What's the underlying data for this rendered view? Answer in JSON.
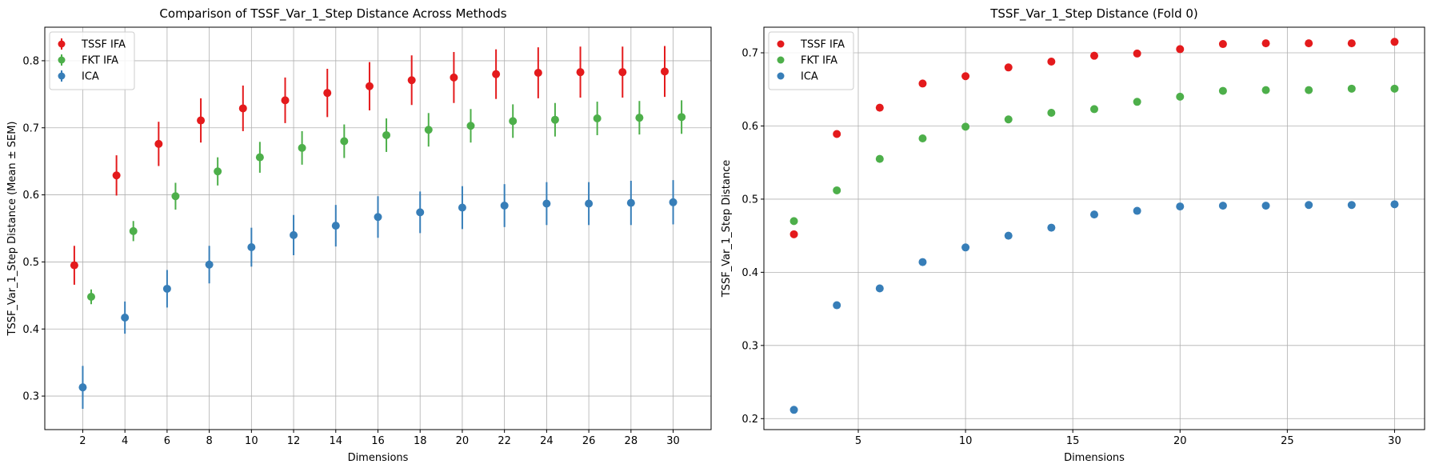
{
  "chart_data": [
    {
      "type": "scatter",
      "subtype": "errorbar",
      "title": "Comparison of TSSF_Var_1_Step Distance Across Methods",
      "xlabel": "Dimensions",
      "ylabel": "TSSF_Var_1_Step Distance (Mean ± SEM)",
      "xlim": [
        0.2,
        31.8
      ],
      "ylim": [
        0.25,
        0.85
      ],
      "xticks": [
        2,
        4,
        6,
        8,
        10,
        12,
        14,
        16,
        18,
        20,
        22,
        24,
        26,
        28,
        30
      ],
      "xtick_labels": [
        "2",
        "4",
        "6",
        "8",
        "10",
        "12",
        "14",
        "16",
        "18",
        "20",
        "22",
        "24",
        "26",
        "28",
        "30"
      ],
      "yticks": [
        0.3,
        0.4,
        0.5,
        0.6,
        0.7,
        0.8
      ],
      "ytick_labels": [
        "0.3",
        "0.4",
        "0.5",
        "0.6",
        "0.7",
        "0.8"
      ],
      "grid": true,
      "legend_position": "top-left",
      "x": [
        2,
        4,
        6,
        8,
        10,
        12,
        14,
        16,
        18,
        20,
        22,
        24,
        26,
        28,
        30
      ],
      "series": [
        {
          "name": "TSSF IFA",
          "color": "#e41a1c",
          "x_offset": -0.4,
          "values": [
            0.495,
            0.629,
            0.676,
            0.711,
            0.729,
            0.741,
            0.752,
            0.762,
            0.771,
            0.775,
            0.78,
            0.782,
            0.783,
            0.783,
            0.784
          ],
          "errors": [
            0.029,
            0.03,
            0.033,
            0.033,
            0.034,
            0.034,
            0.036,
            0.036,
            0.037,
            0.038,
            0.037,
            0.038,
            0.038,
            0.038,
            0.038
          ]
        },
        {
          "name": "FKT IFA",
          "color": "#4daf4a",
          "x_offset": 0.4,
          "values": [
            0.448,
            0.546,
            0.598,
            0.635,
            0.656,
            0.67,
            0.68,
            0.689,
            0.697,
            0.703,
            0.71,
            0.712,
            0.714,
            0.715,
            0.716
          ],
          "errors": [
            0.011,
            0.015,
            0.02,
            0.021,
            0.023,
            0.025,
            0.025,
            0.025,
            0.025,
            0.025,
            0.025,
            0.025,
            0.025,
            0.025,
            0.025
          ]
        },
        {
          "name": "ICA",
          "color": "#377eb8",
          "x_offset": 0.0,
          "values": [
            0.313,
            0.417,
            0.46,
            0.496,
            0.522,
            0.54,
            0.554,
            0.567,
            0.574,
            0.581,
            0.584,
            0.587,
            0.587,
            0.588,
            0.589
          ],
          "errors": [
            0.032,
            0.024,
            0.028,
            0.028,
            0.029,
            0.03,
            0.031,
            0.031,
            0.031,
            0.032,
            0.032,
            0.032,
            0.032,
            0.033,
            0.033
          ]
        }
      ]
    },
    {
      "type": "scatter",
      "title": "TSSF_Var_1_Step Distance (Fold 0)",
      "xlabel": "Dimensions",
      "ylabel": "TSSF_Var_1_Step Distance",
      "xlim": [
        0.6,
        31.4
      ],
      "ylim": [
        0.185,
        0.735
      ],
      "xticks": [
        5,
        10,
        15,
        20,
        25,
        30
      ],
      "xtick_labels": [
        "5",
        "10",
        "15",
        "20",
        "25",
        "30"
      ],
      "yticks": [
        0.2,
        0.3,
        0.4,
        0.5,
        0.6,
        0.7
      ],
      "ytick_labels": [
        "0.2",
        "0.3",
        "0.4",
        "0.5",
        "0.6",
        "0.7"
      ],
      "grid": true,
      "legend_position": "top-left",
      "x": [
        2,
        4,
        6,
        8,
        10,
        12,
        14,
        16,
        18,
        20,
        22,
        24,
        26,
        28,
        30
      ],
      "series": [
        {
          "name": "TSSF IFA",
          "color": "#e41a1c",
          "values": [
            0.452,
            0.589,
            0.625,
            0.658,
            0.668,
            0.68,
            0.688,
            0.696,
            0.699,
            0.705,
            0.712,
            0.713,
            0.713,
            0.713,
            0.715
          ]
        },
        {
          "name": "FKT IFA",
          "color": "#4daf4a",
          "values": [
            0.47,
            0.512,
            0.555,
            0.583,
            0.599,
            0.609,
            0.618,
            0.623,
            0.633,
            0.64,
            0.648,
            0.649,
            0.649,
            0.651,
            0.651
          ]
        },
        {
          "name": "ICA",
          "color": "#377eb8",
          "values": [
            0.212,
            0.355,
            0.378,
            0.414,
            0.434,
            0.45,
            0.461,
            0.479,
            0.484,
            0.49,
            0.491,
            0.491,
            0.492,
            0.492,
            0.493
          ]
        }
      ]
    }
  ]
}
